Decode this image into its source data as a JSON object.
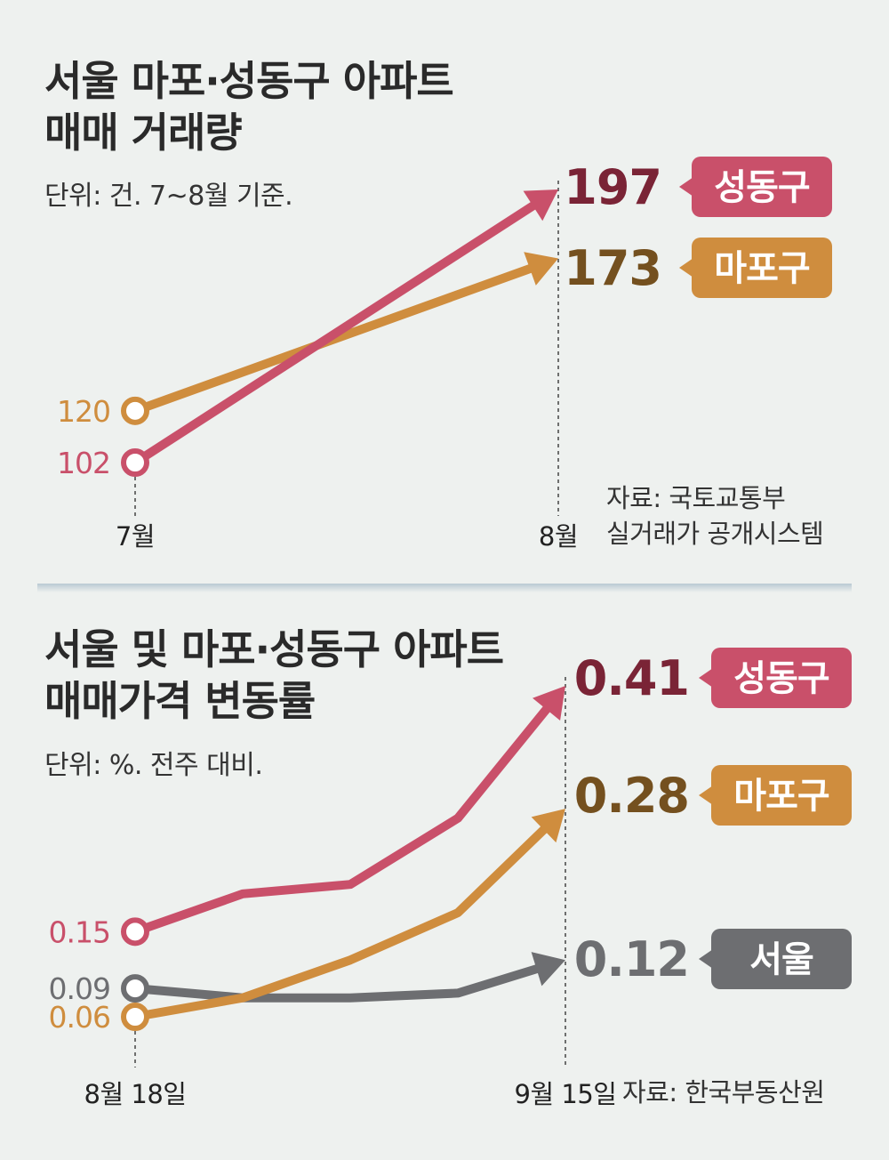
{
  "colors": {
    "seongdong": "#c9506a",
    "seongdong_value": "#7a2436",
    "mapo": "#cf8d3e",
    "mapo_value": "#74501f",
    "seoul": "#6d6e71",
    "seoul_value": "#6d6e71",
    "background": "#eef1ef"
  },
  "top_chart": {
    "title_lines": [
      "서울 마포·성동구 아파트",
      "매매 거래량"
    ],
    "unit": "단위: 건. 7~8월 기준.",
    "source_lines": [
      "자료: 국토교통부",
      "실거래가 공개시스템"
    ]
  },
  "bottom_chart": {
    "title_lines": [
      "서울 및 마포·성동구 아파트",
      "매매가격 변동률"
    ],
    "unit": "단위: %. 전주 대비.",
    "source_lines": [
      "자료: 한국부동산원"
    ]
  },
  "chart_data": [
    {
      "type": "line",
      "title": "서울 마포·성동구 아파트 매매 거래량",
      "unit": "건",
      "categories": [
        "7월",
        "8월"
      ],
      "ylim": [
        100,
        200
      ],
      "grid": false,
      "series": [
        {
          "name": "성동구",
          "values": [
            102,
            197
          ],
          "start_label": "102",
          "end_label": "197",
          "color": "#c9506a"
        },
        {
          "name": "마포구",
          "values": [
            120,
            173
          ],
          "start_label": "120",
          "end_label": "173",
          "color": "#cf8d3e"
        }
      ]
    },
    {
      "type": "line",
      "title": "서울 및 마포·성동구 아파트 매매가격 변동률",
      "unit": "%",
      "categories": [
        "8월 18일",
        "",
        "",
        "",
        "9월 15일"
      ],
      "ylim": [
        0.04,
        0.45
      ],
      "grid": false,
      "series": [
        {
          "name": "성동구",
          "values": [
            0.15,
            0.19,
            0.2,
            0.27,
            0.41
          ],
          "start_label": "0.15",
          "end_label": "0.41",
          "color": "#c9506a"
        },
        {
          "name": "마포구",
          "values": [
            0.06,
            0.08,
            0.12,
            0.17,
            0.28
          ],
          "start_label": "0.06",
          "end_label": "0.28",
          "color": "#cf8d3e"
        },
        {
          "name": "서울",
          "values": [
            0.09,
            0.08,
            0.08,
            0.085,
            0.12
          ],
          "start_label": "0.09",
          "end_label": "0.12",
          "color": "#6d6e71"
        }
      ]
    }
  ]
}
